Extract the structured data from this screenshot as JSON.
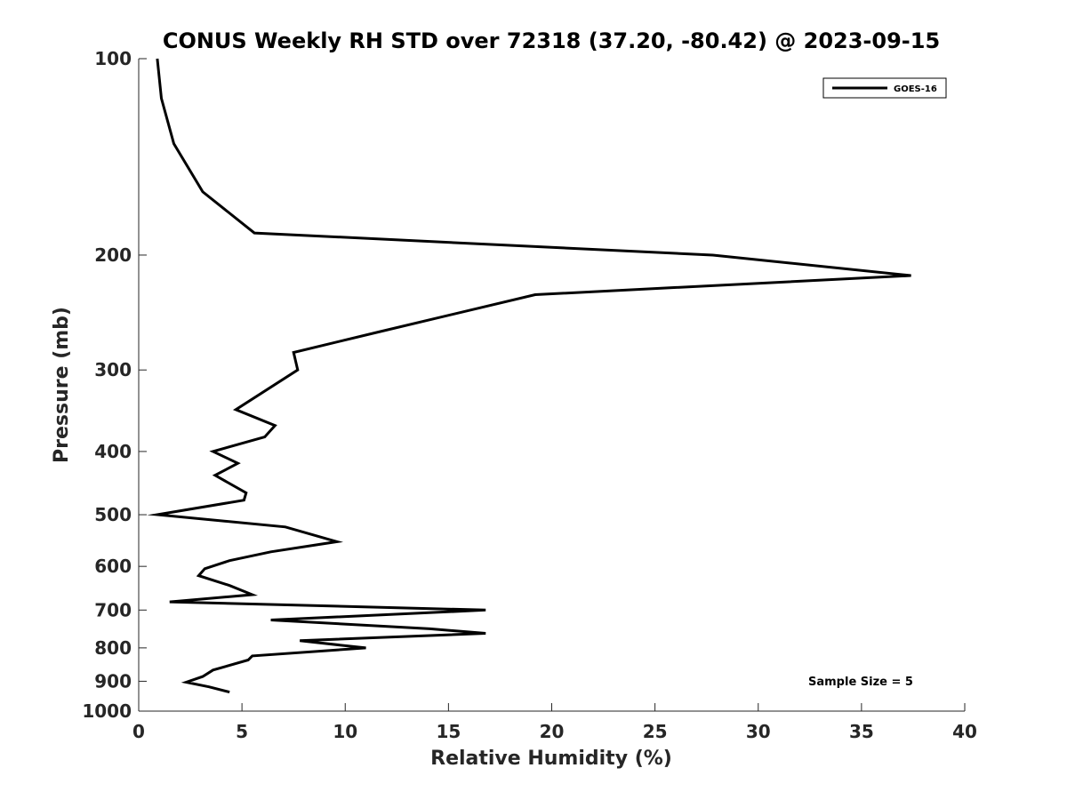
{
  "chart_data": {
    "type": "line",
    "title": "CONUS Weekly RH STD over 72318 (37.20, -80.42) @ 2023-09-15",
    "xlabel": "Relative Humidity (%)",
    "ylabel": "Pressure (mb)",
    "xlim": [
      0,
      40
    ],
    "ylim": [
      100,
      1000
    ],
    "y_scale": "log",
    "y_reversed": true,
    "x_ticks": [
      "0",
      "5",
      "10",
      "15",
      "20",
      "25",
      "30",
      "35",
      "40"
    ],
    "y_ticks": [
      "100",
      "200",
      "300",
      "400",
      "500",
      "600",
      "700",
      "800",
      "900",
      "1000"
    ],
    "grid": false,
    "legend_position": "top-right",
    "annotation": "Sample Size = 5",
    "series": [
      {
        "name": "GOES-16",
        "color": "#000000",
        "x": [
          0.9,
          1.1,
          1.7,
          3.1,
          5.6,
          27.8,
          37.4,
          19.2,
          11.7,
          7.5,
          7.7,
          4.7,
          6.6,
          6.1,
          3.6,
          4.8,
          3.7,
          5.2,
          5.1,
          0.9,
          7.1,
          9.6,
          6.4,
          4.4,
          3.2,
          2.9,
          4.4,
          5.5,
          1.5,
          16.8,
          6.4,
          14.1,
          16.8,
          7.8,
          11.0,
          5.5,
          5.3,
          3.6,
          3.1,
          2.3,
          3.4,
          4.4
        ],
        "y": [
          100,
          115,
          135,
          160,
          185,
          200,
          215,
          230,
          262,
          282,
          300,
          345,
          365,
          380,
          400,
          417,
          435,
          463,
          475,
          500,
          522,
          550,
          570,
          588,
          605,
          620,
          642,
          663,
          680,
          700,
          725,
          748,
          760,
          780,
          800,
          823,
          835,
          865,
          885,
          903,
          918,
          935
        ]
      }
    ]
  }
}
